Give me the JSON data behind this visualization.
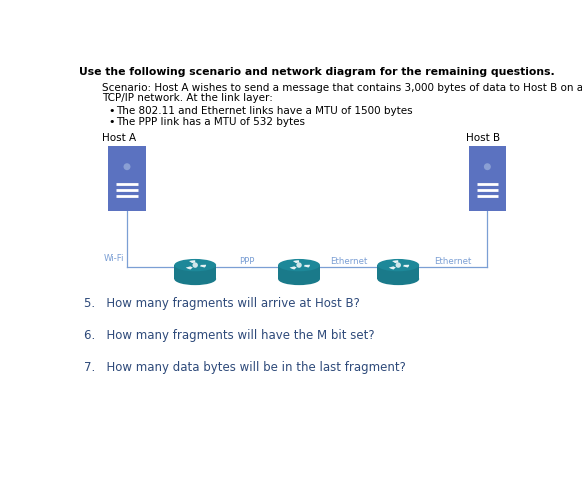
{
  "title": "Use the following scenario and network diagram for the remaining questions.",
  "scenario_line1": "Scenario: Host A wishes to send a message that contains 3,000 bytes of data to Host B on a",
  "scenario_line2": "TCP/IP network. At the link layer:",
  "bullet1": "The 802.11 and Ethernet links have a MTU of 1500 bytes",
  "bullet2": "The PPP link has a MTU of 532 bytes",
  "host_a_label": "Host A",
  "host_b_label": "Host B",
  "wifi_label": "Wi-Fi",
  "ppp_label": "PPP",
  "ethernet_label1": "Ethernet",
  "ethernet_label2": "Ethernet",
  "q5": "5.   How many fragments will arrive at Host B?",
  "q6": "6.   How many fragments will have the M bit set?",
  "q7": "7.   How many data bytes will be in the last fragment?",
  "host_color": "#5B72C0",
  "host_circle_color": "#8A9FD4",
  "host_line_color": "#FFFFFF",
  "router_body_color": "#1A7A8A",
  "router_top_color": "#1D8899",
  "line_color": "#7B9FD4",
  "bg_color": "#FFFFFF",
  "text_color": "#000000",
  "title_color": "#000000",
  "question_color": "#2E4A7A",
  "label_color": "#7B9FD4"
}
